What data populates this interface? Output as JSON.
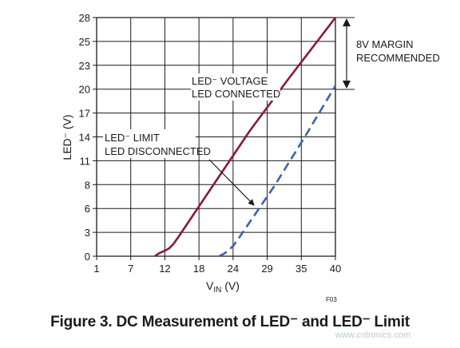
{
  "caption": "Figure 3. DC Measurement of LED⁻ and LED⁻ Limit",
  "figure_code": "F03",
  "watermark": "www.cntronics.com",
  "colors": {
    "connected": "#8b1a2e",
    "disconnected": "#3b62b0",
    "grid": "#1a1a1a"
  },
  "chart_data": {
    "type": "line",
    "title": "",
    "xlabel": "VIN (V)",
    "xlabel_main": "V",
    "xlabel_sub": "IN",
    "xlabel_unit": " (V)",
    "ylabel": "LED⁻ (V)",
    "xlim": [
      1,
      40
    ],
    "ylim": [
      0,
      28
    ],
    "x_ticks": [
      "1",
      "7",
      "12",
      "18",
      "24",
      "29",
      "35",
      "40"
    ],
    "y_ticks": [
      "0",
      "3",
      "6",
      "8",
      "11",
      "14",
      "17",
      "20",
      "23",
      "25",
      "28"
    ],
    "grid": true,
    "series": [
      {
        "name": "LED⁻ VOLTAGE LED CONNECTED",
        "style": "solid",
        "x": [
          10.5,
          11.2,
          12,
          12.8,
          13.5,
          14.3,
          20,
          26,
          32,
          40
        ],
        "y": [
          0,
          0.35,
          0.6,
          0.9,
          1.4,
          2.2,
          8.3,
          14.7,
          20.5,
          28
        ]
      },
      {
        "name": "LED⁻ LIMIT LED DISCONNECTED",
        "style": "dashed",
        "x": [
          21,
          21.8,
          22.6,
          23.4,
          24.2,
          30,
          35,
          40
        ],
        "y": [
          0,
          0.3,
          0.7,
          1.3,
          2.1,
          8.2,
          14,
          20
        ]
      }
    ],
    "annotations": {
      "connected_label": [
        "LED⁻ VOLTAGE",
        "LED CONNECTED"
      ],
      "disconnected_label": [
        "LED⁻ LIMIT",
        "LED DISCONNECTED"
      ],
      "margin_label": [
        "8V MARGIN",
        "RECOMMENDED"
      ]
    }
  }
}
